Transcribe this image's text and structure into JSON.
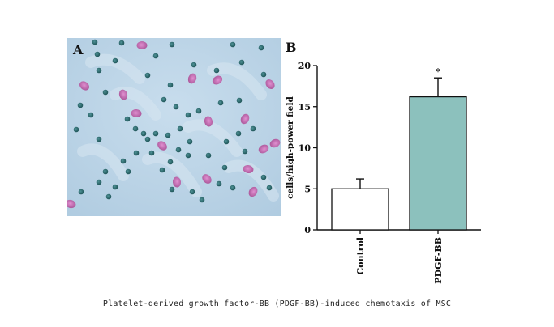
{
  "panel_a": {
    "label": "A",
    "background_color": "#b9d3e4",
    "dark_cell_color": "#2d6d70",
    "pink_cell_color": "#c46fb4"
  },
  "panel_b": {
    "label": "B"
  },
  "chart_data": {
    "type": "bar",
    "title": "",
    "xlabel": "",
    "ylabel": "cells/high-power field",
    "categories": [
      "Control",
      "PDGF-BB"
    ],
    "values": [
      5.0,
      16.2
    ],
    "errors": [
      1.2,
      2.3
    ],
    "significance": [
      "",
      "*"
    ],
    "bar_colors": [
      "#ffffff",
      "#8cc1bd"
    ],
    "ylim": [
      0,
      20
    ],
    "yticks": [
      0,
      5,
      10,
      15,
      20
    ],
    "grid": false,
    "legend": "none"
  },
  "caption": "Platelet-derived growth factor-BB (PDGF-BB)-induced chemotaxis of MSC"
}
